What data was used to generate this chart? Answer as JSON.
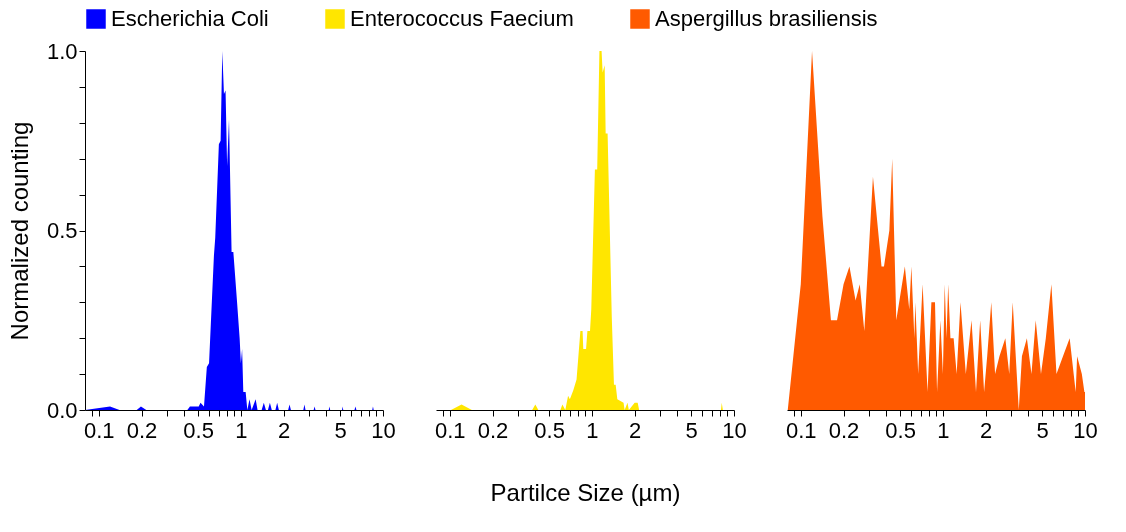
{
  "chart_data": [
    {
      "type": "area",
      "ylabel": "Normalized counting",
      "legend": "top",
      "log": "x",
      "grid": false,
      "xlim": [
        0.08,
        10
      ],
      "ylim": [
        0,
        1
      ],
      "xticks": [
        {
          "value": 0.09,
          "label": null
        },
        0.1,
        0.2,
        {
          "value": 0.3,
          "label": null
        },
        {
          "value": 0.4,
          "label": null
        },
        0.5,
        {
          "value": 0.6,
          "label": null
        },
        {
          "value": 0.7,
          "label": null
        },
        {
          "value": 0.8,
          "label": null
        },
        {
          "value": 0.9,
          "label": null
        },
        1,
        2,
        {
          "value": 3,
          "label": null
        },
        {
          "value": 4,
          "label": null
        },
        5,
        {
          "value": 6,
          "label": null
        },
        {
          "value": 7,
          "label": null
        },
        {
          "value": 8,
          "label": null
        },
        {
          "value": 9,
          "label": null
        },
        10
      ],
      "yticks": [
        {
          "value": 0,
          "label": "0.0"
        },
        {
          "value": 0.1,
          "label": null
        },
        {
          "value": 0.2,
          "label": null
        },
        {
          "value": 0.3,
          "label": null
        },
        {
          "value": 0.4,
          "label": null
        },
        {
          "value": 0.5,
          "label": "0.5"
        },
        {
          "value": 0.6,
          "label": null
        },
        {
          "value": 0.7,
          "label": null
        },
        {
          "value": 0.8,
          "label": null
        },
        {
          "value": 0.9,
          "label": null
        },
        {
          "value": 1,
          "label": "1.0"
        }
      ],
      "x": [
        0.08,
        0.12,
        0.14,
        0.185,
        0.198,
        0.216,
        0.42,
        0.438,
        0.505,
        0.52,
        0.55,
        0.576,
        0.597,
        0.646,
        0.66,
        0.7,
        0.72,
        0.74,
        0.76,
        0.78,
        0.8,
        0.825,
        0.86,
        0.885,
        0.94,
        0.98,
        1.0,
        1.02,
        1.04,
        1.08,
        1.11,
        1.15,
        1.19,
        1.27,
        1.31,
        1.4,
        1.45,
        1.5,
        1.55,
        1.6,
        1.65,
        1.75,
        1.8,
        1.85,
        2.15,
        2.2,
        2.25,
        2.75,
        2.8,
        2.85,
        3.25,
        3.3,
        3.35,
        4.15,
        4.2,
        4.25,
        5.15,
        5.2,
        5.25,
        6.3,
        6.4,
        6.5,
        8.4,
        8.5,
        8.6,
        10
      ],
      "series": [
        {
          "name": "Escherichia Coli",
          "color": "#0000ff",
          "values": [
            0,
            0.01,
            0,
            0,
            0.01,
            0,
            0,
            0.01,
            0.01,
            0.02,
            0.01,
            0.12,
            0.13,
            0.43,
            0.48,
            0.74,
            0.75,
            1.0,
            0.88,
            0.89,
            0.68,
            0.81,
            0.44,
            0.44,
            0.3,
            0.2,
            0.13,
            0.17,
            0.05,
            0.05,
            0,
            0.03,
            0,
            0.03,
            0,
            0,
            0.02,
            0,
            0,
            0.02,
            0,
            0,
            0.02,
            0,
            0,
            0.015,
            0,
            0,
            0.015,
            0,
            0,
            0.01,
            0,
            0,
            0.01,
            0,
            0,
            0.01,
            0,
            0,
            0.01,
            0,
            0,
            0.01,
            0,
            0
          ]
        }
      ]
    },
    {
      "type": "area",
      "xlabel": "Partilce Size (µm)",
      "legend": "top",
      "log": "x",
      "grid": false,
      "tick_labels": "x",
      "xlim": [
        0.08,
        10
      ],
      "ylim": [
        0,
        1
      ],
      "xticks": [
        {
          "value": 0.09,
          "label": null
        },
        0.1,
        0.2,
        {
          "value": 0.3,
          "label": null
        },
        {
          "value": 0.4,
          "label": null
        },
        0.5,
        {
          "value": 0.6,
          "label": null
        },
        {
          "value": 0.7,
          "label": null
        },
        {
          "value": 0.8,
          "label": null
        },
        {
          "value": 0.9,
          "label": null
        },
        1,
        2,
        {
          "value": 3,
          "label": null
        },
        {
          "value": 4,
          "label": null
        },
        5,
        {
          "value": 6,
          "label": null
        },
        {
          "value": 7,
          "label": null
        },
        {
          "value": 8,
          "label": null
        },
        {
          "value": 9,
          "label": null
        },
        10
      ],
      "x": [
        0.08,
        0.102,
        0.121,
        0.143,
        0.38,
        0.4,
        0.42,
        0.6,
        0.62,
        0.65,
        0.68,
        0.7,
        0.74,
        0.78,
        0.83,
        0.86,
        0.87,
        0.91,
        0.93,
        0.97,
        0.99,
        1.05,
        1.09,
        1.13,
        1.17,
        1.19,
        1.23,
        1.25,
        1.29,
        1.38,
        1.43,
        1.47,
        1.51,
        1.67,
        1.7,
        1.78,
        1.82,
        2.0,
        2.1,
        2.15,
        8.1,
        8.2,
        8.35,
        10
      ],
      "series": [
        {
          "name": "Enterococcus Faecium",
          "color": "#ffe600",
          "values": [
            0,
            0,
            0.015,
            0,
            0,
            0.015,
            0,
            0,
            0.015,
            0,
            0.04,
            0.03,
            0.055,
            0.085,
            0.22,
            0.22,
            0.17,
            0.17,
            0.22,
            0.22,
            0.28,
            0.67,
            0.67,
            1.0,
            1.0,
            0.94,
            0.96,
            0.77,
            0.77,
            0.26,
            0.07,
            0.07,
            0.03,
            0.02,
            0,
            0.02,
            0,
            0.02,
            0.02,
            0,
            0,
            0.02,
            0,
            0
          ]
        }
      ]
    },
    {
      "type": "area",
      "legend": "top",
      "log": "x",
      "grid": false,
      "tick_labels": "x",
      "xlim": [
        0.08,
        10
      ],
      "ylim": [
        0,
        1
      ],
      "xticks": [
        {
          "value": 0.09,
          "label": null
        },
        0.1,
        0.2,
        {
          "value": 0.3,
          "label": null
        },
        {
          "value": 0.4,
          "label": null
        },
        0.5,
        {
          "value": 0.6,
          "label": null
        },
        {
          "value": 0.7,
          "label": null
        },
        {
          "value": 0.8,
          "label": null
        },
        {
          "value": 0.9,
          "label": null
        },
        1,
        2,
        {
          "value": 3,
          "label": null
        },
        {
          "value": 4,
          "label": null
        },
        5,
        {
          "value": 6,
          "label": null
        },
        {
          "value": 7,
          "label": null
        },
        {
          "value": 8,
          "label": null
        },
        {
          "value": 9,
          "label": null
        },
        10
      ],
      "x": [
        0.081,
        0.1,
        0.12,
        0.142,
        0.163,
        0.18,
        0.2,
        0.22,
        0.243,
        0.26,
        0.28,
        0.322,
        0.37,
        0.385,
        0.42,
        0.44,
        0.47,
        0.54,
        0.58,
        0.6,
        0.63,
        0.64,
        0.67,
        0.72,
        0.78,
        0.83,
        0.88,
        0.91,
        0.96,
        1.0,
        1.03,
        1.06,
        1.09,
        1.13,
        1.19,
        1.25,
        1.33,
        1.45,
        1.59,
        1.71,
        1.83,
        1.95,
        2.05,
        2.19,
        2.33,
        2.5,
        2.75,
        2.93,
        3.1,
        3.42,
        3.6,
        3.9,
        4.2,
        4.5,
        4.9,
        5.3,
        5.8,
        6.3,
        7.0,
        7.8,
        8.6,
        8.8,
        9.5,
        9.9,
        10
      ],
      "series": [
        {
          "name": "Aspergillus brasiliensis",
          "color": "#ff5a00",
          "values": [
            0,
            0.35,
            1.0,
            0.54,
            0.25,
            0.25,
            0.35,
            0.4,
            0.305,
            0.35,
            0.22,
            0.65,
            0.4,
            0.4,
            0.5,
            0.7,
            0.25,
            0.4,
            0.28,
            0.4,
            0.2,
            0.3,
            0.1,
            0.35,
            0.05,
            0.3,
            0.3,
            0.05,
            0.25,
            0.1,
            0.35,
            0.2,
            0.35,
            0.2,
            0.2,
            0.1,
            0.3,
            0.1,
            0.25,
            0.05,
            0.25,
            0.05,
            0.15,
            0.3,
            0.1,
            0.15,
            0.2,
            0.1,
            0.3,
            0,
            0.15,
            0.2,
            0.1,
            0.25,
            0.1,
            0.2,
            0.35,
            0.1,
            0.15,
            0.2,
            0.05,
            0.15,
            0.1,
            0.05,
            0.05
          ]
        }
      ]
    }
  ]
}
